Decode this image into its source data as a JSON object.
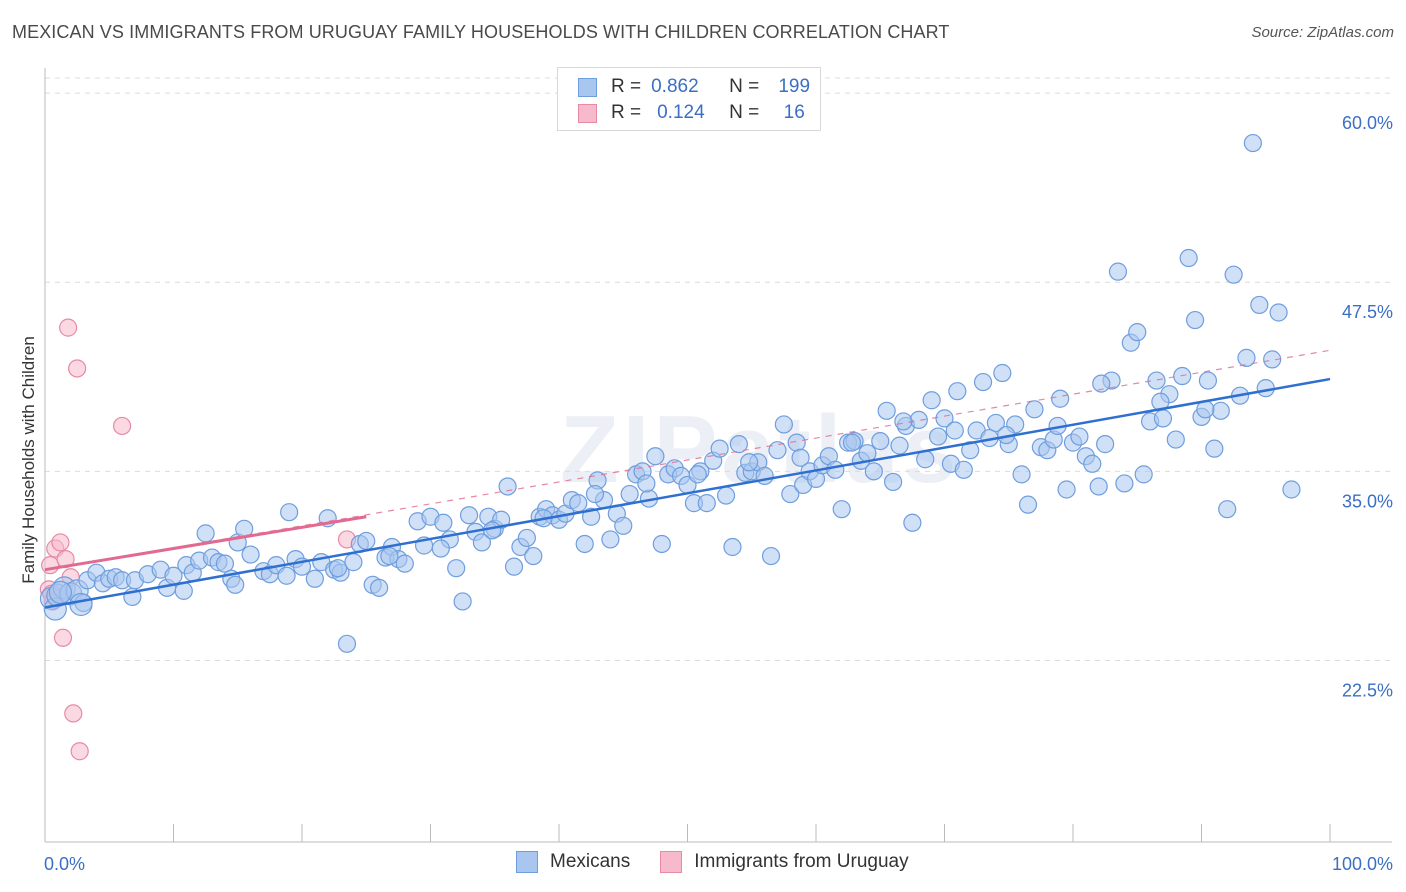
{
  "title": "MEXICAN VS IMMIGRANTS FROM URUGUAY FAMILY HOUSEHOLDS WITH CHILDREN CORRELATION CHART",
  "source": "Source: ZipAtlas.com",
  "watermark": "ZIPatlas",
  "colors": {
    "blue_fill": "#a9c6ef",
    "blue_stroke": "#6f9ede",
    "blue_line": "#2f6fd0",
    "pink_fill": "#f7b9cc",
    "pink_stroke": "#e68aa6",
    "pink_line": "#e06a90",
    "grid": "#dcdcdc",
    "tick_text": "#3b6fc4"
  },
  "legend": {
    "r_label": "R =",
    "n_label": "N =",
    "series": [
      {
        "r": "0.862",
        "n": "199"
      },
      {
        "r": "0.124",
        "n": "16"
      }
    ]
  },
  "chart_data": {
    "type": "scatter",
    "title": "MEXICAN VS IMMIGRANTS FROM URUGUAY FAMILY HOUSEHOLDS WITH CHILDREN CORRELATION CHART",
    "xlabel": "",
    "ylabel": "Family Households with Children",
    "x_tick_labels": [
      "0.0%",
      "100.0%"
    ],
    "y_tick_labels": [
      "22.5%",
      "35.0%",
      "47.5%",
      "60.0%"
    ],
    "y_ticks": [
      22.5,
      35.0,
      47.5,
      60.0
    ],
    "xlim": [
      0,
      100
    ],
    "ylim": [
      10.5,
      61.0
    ],
    "grid": true,
    "legend_position": "bottom",
    "series": [
      {
        "name": "Mexicans",
        "r": 0.862,
        "n": 199,
        "trend": {
          "x": [
            0,
            100
          ],
          "y": [
            26.0,
            41.1
          ]
        },
        "points": [
          [
            0.5,
            26.6
          ],
          [
            0.8,
            25.9
          ],
          [
            1.0,
            26.8
          ],
          [
            1.5,
            27.3
          ],
          [
            2.0,
            26.9
          ],
          [
            2.5,
            27.1
          ],
          [
            3.0,
            26.3
          ],
          [
            3.3,
            27.8
          ],
          [
            4.0,
            28.3
          ],
          [
            4.5,
            27.6
          ],
          [
            5.0,
            27.9
          ],
          [
            5.5,
            28.0
          ],
          [
            6.0,
            27.8
          ],
          [
            7.0,
            27.8
          ],
          [
            8.0,
            28.2
          ],
          [
            9.0,
            28.5
          ],
          [
            9.5,
            27.3
          ],
          [
            10.0,
            28.1
          ],
          [
            11.0,
            28.8
          ],
          [
            11.5,
            28.3
          ],
          [
            12.0,
            29.1
          ],
          [
            12.5,
            30.9
          ],
          [
            13.0,
            29.3
          ],
          [
            13.5,
            29.0
          ],
          [
            14.0,
            28.9
          ],
          [
            14.5,
            27.9
          ],
          [
            15.0,
            30.3
          ],
          [
            15.5,
            31.2
          ],
          [
            16.0,
            29.5
          ],
          [
            17.0,
            28.4
          ],
          [
            17.5,
            28.2
          ],
          [
            18.0,
            28.8
          ],
          [
            19.0,
            32.3
          ],
          [
            19.5,
            29.2
          ],
          [
            20.0,
            28.7
          ],
          [
            21.0,
            27.9
          ],
          [
            21.5,
            29.0
          ],
          [
            22.0,
            31.9
          ],
          [
            22.5,
            28.5
          ],
          [
            23.0,
            28.3
          ],
          [
            23.5,
            23.6
          ],
          [
            24.0,
            29.0
          ],
          [
            24.5,
            30.2
          ],
          [
            25.0,
            30.4
          ],
          [
            25.5,
            27.5
          ],
          [
            26.0,
            27.3
          ],
          [
            26.5,
            29.3
          ],
          [
            27.0,
            30.0
          ],
          [
            27.5,
            29.2
          ],
          [
            28.0,
            28.9
          ],
          [
            29.0,
            31.7
          ],
          [
            29.5,
            30.1
          ],
          [
            30.0,
            32.0
          ],
          [
            31.0,
            31.6
          ],
          [
            31.5,
            30.5
          ],
          [
            32.0,
            28.6
          ],
          [
            32.5,
            26.4
          ],
          [
            33.0,
            32.1
          ],
          [
            33.5,
            31.0
          ],
          [
            34.0,
            30.3
          ],
          [
            34.5,
            32.0
          ],
          [
            35.0,
            31.2
          ],
          [
            35.5,
            31.8
          ],
          [
            36.0,
            34.0
          ],
          [
            36.5,
            28.7
          ],
          [
            37.0,
            30.0
          ],
          [
            37.5,
            30.6
          ],
          [
            38.0,
            29.4
          ],
          [
            38.5,
            32.0
          ],
          [
            39.0,
            32.5
          ],
          [
            39.5,
            32.1
          ],
          [
            40.0,
            31.8
          ],
          [
            40.5,
            32.2
          ],
          [
            41.0,
            33.1
          ],
          [
            41.5,
            32.9
          ],
          [
            42.0,
            30.2
          ],
          [
            42.5,
            32.0
          ],
          [
            43.0,
            34.4
          ],
          [
            43.5,
            33.1
          ],
          [
            44.0,
            30.5
          ],
          [
            44.5,
            32.2
          ],
          [
            45.0,
            31.4
          ],
          [
            45.5,
            33.5
          ],
          [
            46.0,
            34.8
          ],
          [
            46.5,
            35.0
          ],
          [
            47.0,
            33.2
          ],
          [
            47.5,
            36.0
          ],
          [
            48.0,
            30.2
          ],
          [
            48.5,
            34.8
          ],
          [
            49.0,
            35.2
          ],
          [
            49.5,
            34.7
          ],
          [
            50.0,
            34.1
          ],
          [
            50.5,
            32.9
          ],
          [
            51.0,
            35.0
          ],
          [
            51.5,
            32.9
          ],
          [
            52.0,
            35.7
          ],
          [
            52.5,
            36.5
          ],
          [
            53.0,
            33.4
          ],
          [
            53.5,
            30.0
          ],
          [
            54.0,
            36.8
          ],
          [
            54.5,
            34.9
          ],
          [
            55.0,
            35.0
          ],
          [
            55.5,
            35.6
          ],
          [
            56.0,
            34.7
          ],
          [
            56.5,
            29.4
          ],
          [
            57.0,
            36.4
          ],
          [
            57.5,
            38.1
          ],
          [
            58.0,
            33.5
          ],
          [
            58.5,
            36.9
          ],
          [
            59.0,
            34.1
          ],
          [
            59.5,
            35.0
          ],
          [
            60.0,
            34.5
          ],
          [
            60.5,
            35.4
          ],
          [
            61.0,
            36.0
          ],
          [
            61.5,
            35.1
          ],
          [
            62.0,
            32.5
          ],
          [
            62.5,
            36.9
          ],
          [
            63.0,
            37.0
          ],
          [
            63.5,
            35.7
          ],
          [
            64.0,
            36.2
          ],
          [
            64.5,
            35.0
          ],
          [
            65.0,
            37.0
          ],
          [
            65.5,
            39.0
          ],
          [
            66.0,
            34.3
          ],
          [
            66.5,
            36.7
          ],
          [
            67.0,
            38.0
          ],
          [
            67.5,
            31.6
          ],
          [
            68.0,
            38.4
          ],
          [
            68.5,
            35.8
          ],
          [
            69.0,
            39.7
          ],
          [
            69.5,
            37.3
          ],
          [
            70.0,
            38.5
          ],
          [
            70.5,
            35.5
          ],
          [
            71.0,
            40.3
          ],
          [
            71.5,
            35.1
          ],
          [
            72.0,
            36.4
          ],
          [
            72.5,
            37.7
          ],
          [
            73.0,
            40.9
          ],
          [
            73.5,
            37.2
          ],
          [
            74.0,
            38.2
          ],
          [
            74.5,
            41.5
          ],
          [
            75.0,
            36.8
          ],
          [
            75.5,
            38.1
          ],
          [
            76.0,
            34.8
          ],
          [
            76.5,
            32.8
          ],
          [
            77.0,
            39.1
          ],
          [
            77.5,
            36.6
          ],
          [
            78.0,
            36.4
          ],
          [
            78.5,
            37.1
          ],
          [
            79.0,
            39.8
          ],
          [
            79.5,
            33.8
          ],
          [
            80.0,
            36.9
          ],
          [
            80.5,
            37.3
          ],
          [
            81.0,
            36.0
          ],
          [
            81.5,
            35.5
          ],
          [
            82.0,
            34.0
          ],
          [
            82.5,
            36.8
          ],
          [
            83.0,
            41.0
          ],
          [
            83.5,
            48.2
          ],
          [
            84.0,
            34.2
          ],
          [
            84.5,
            43.5
          ],
          [
            85.0,
            44.2
          ],
          [
            85.5,
            34.8
          ],
          [
            86.0,
            38.3
          ],
          [
            86.5,
            41.0
          ],
          [
            87.0,
            38.5
          ],
          [
            87.5,
            40.1
          ],
          [
            88.0,
            37.1
          ],
          [
            88.5,
            41.3
          ],
          [
            89.0,
            49.1
          ],
          [
            89.5,
            45.0
          ],
          [
            90.0,
            38.6
          ],
          [
            90.5,
            41.0
          ],
          [
            91.0,
            36.5
          ],
          [
            91.5,
            39.0
          ],
          [
            92.0,
            32.5
          ],
          [
            92.5,
            48.0
          ],
          [
            93.0,
            40.0
          ],
          [
            93.5,
            42.5
          ],
          [
            94.0,
            56.7
          ],
          [
            94.5,
            46.0
          ],
          [
            95.0,
            40.5
          ],
          [
            96.0,
            45.5
          ],
          [
            97.0,
            33.8
          ],
          [
            95.5,
            42.4
          ],
          [
            90.3,
            39.1
          ],
          [
            86.8,
            39.6
          ],
          [
            82.2,
            40.8
          ],
          [
            78.8,
            38.0
          ],
          [
            74.8,
            37.4
          ],
          [
            70.8,
            37.7
          ],
          [
            66.8,
            38.3
          ],
          [
            62.8,
            36.9
          ],
          [
            58.8,
            35.9
          ],
          [
            54.8,
            35.6
          ],
          [
            50.8,
            34.8
          ],
          [
            46.8,
            34.2
          ],
          [
            42.8,
            33.5
          ],
          [
            38.8,
            31.9
          ],
          [
            34.8,
            31.1
          ],
          [
            30.8,
            29.9
          ],
          [
            26.8,
            29.4
          ],
          [
            22.8,
            28.6
          ],
          [
            18.8,
            28.1
          ],
          [
            14.8,
            27.5
          ],
          [
            10.8,
            27.1
          ],
          [
            6.8,
            26.7
          ],
          [
            2.8,
            26.2
          ],
          [
            1.2,
            27.0
          ]
        ]
      },
      {
        "name": "Immigrants from Uruguay",
        "r": 0.124,
        "n": 16,
        "trend": {
          "x": [
            0,
            25
          ],
          "y": [
            28.5,
            32.0
          ]
        },
        "trend_extended": {
          "x": [
            0,
            100
          ],
          "y": [
            28.5,
            43.0
          ]
        },
        "points": [
          [
            0.3,
            27.2
          ],
          [
            0.4,
            28.8
          ],
          [
            0.5,
            26.9
          ],
          [
            0.6,
            26.4
          ],
          [
            0.8,
            29.9
          ],
          [
            1.0,
            27.0
          ],
          [
            1.2,
            30.3
          ],
          [
            1.4,
            24.0
          ],
          [
            1.6,
            29.2
          ],
          [
            1.8,
            44.5
          ],
          [
            2.0,
            28.0
          ],
          [
            2.2,
            19.0
          ],
          [
            2.5,
            41.8
          ],
          [
            2.7,
            16.5
          ],
          [
            6.0,
            38.0
          ],
          [
            23.5,
            30.5
          ]
        ]
      }
    ]
  },
  "bottom_legend": [
    {
      "label": "Mexicans"
    },
    {
      "label": "Immigrants from Uruguay"
    }
  ]
}
